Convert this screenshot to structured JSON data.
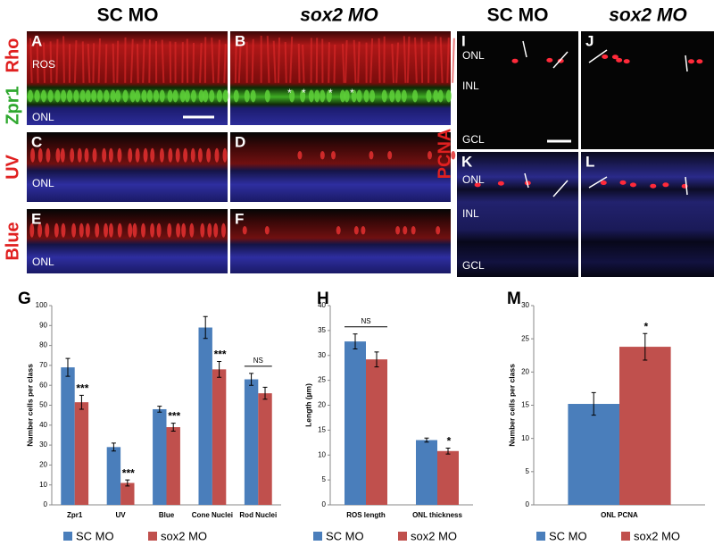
{
  "figure": {
    "column_headers_left": [
      "SC MO",
      "sox2 MO"
    ],
    "column_headers_right": [
      "SC MO",
      "sox2 MO"
    ],
    "row_labels_left": [
      "Rho",
      "Zpr1",
      "UV",
      "Blue"
    ],
    "row_label_right": "PCNA",
    "panels": [
      {
        "letter": "A",
        "labels": [
          "ROS",
          "ONL"
        ]
      },
      {
        "letter": "B",
        "labels": [
          "*",
          "*",
          "*",
          "*"
        ]
      },
      {
        "letter": "C",
        "labels": [
          "ONL"
        ]
      },
      {
        "letter": "D",
        "labels": []
      },
      {
        "letter": "E",
        "labels": [
          "ONL"
        ]
      },
      {
        "letter": "F",
        "labels": []
      },
      {
        "letter": "I",
        "labels": [
          "ONL",
          "INL",
          "GCL"
        ]
      },
      {
        "letter": "J",
        "labels": []
      },
      {
        "letter": "K",
        "labels": [
          "ONL",
          "INL",
          "GCL"
        ]
      },
      {
        "letter": "L",
        "labels": []
      }
    ]
  },
  "chart_data": [
    {
      "type": "bar",
      "panel": "G",
      "ylabel": "Number cells per class",
      "categories": [
        "Zpr1",
        "UV",
        "Blue",
        "Cone Nuclei",
        "Rod Nuclei"
      ],
      "series": [
        {
          "name": "SC MO",
          "color": "#4a7ebb",
          "values": [
            69,
            29,
            48,
            89,
            63
          ],
          "errors": [
            4.5,
            2,
            1.5,
            5.5,
            3
          ]
        },
        {
          "name": "sox2 MO",
          "color": "#c0504d",
          "values": [
            51.5,
            11,
            39,
            68,
            56
          ],
          "errors": [
            3.5,
            1.5,
            2,
            4,
            3
          ]
        }
      ],
      "ylim": [
        0,
        100
      ],
      "yticks": [
        0,
        10,
        20,
        30,
        40,
        50,
        60,
        70,
        80,
        90,
        100
      ],
      "annotations": [
        {
          "text": "***",
          "category": "Zpr1"
        },
        {
          "text": "***",
          "category": "UV"
        },
        {
          "text": "***",
          "category": "Blue"
        },
        {
          "text": "***",
          "category": "Cone Nuclei"
        },
        {
          "text": "NS",
          "category": "Rod Nuclei"
        }
      ],
      "legend": "bottom"
    },
    {
      "type": "bar",
      "panel": "H",
      "ylabel": "Length (µm)",
      "categories": [
        "ROS length",
        "ONL thickness"
      ],
      "series": [
        {
          "name": "SC MO",
          "color": "#4a7ebb",
          "values": [
            32.8,
            13
          ],
          "errors": [
            1.5,
            0.4
          ]
        },
        {
          "name": "sox2 MO",
          "color": "#c0504d",
          "values": [
            29.2,
            10.8
          ],
          "errors": [
            1.5,
            0.6
          ]
        }
      ],
      "ylim": [
        0,
        40
      ],
      "yticks": [
        0,
        5,
        10,
        15,
        20,
        25,
        30,
        35,
        40
      ],
      "annotations": [
        {
          "text": "NS",
          "category": "ROS length"
        },
        {
          "text": "*",
          "category": "ONL thickness"
        }
      ],
      "legend": "bottom"
    },
    {
      "type": "bar",
      "panel": "M",
      "ylabel": "Number cells per class",
      "categories": [
        "ONL PCNA"
      ],
      "series": [
        {
          "name": "SC MO",
          "color": "#4a7ebb",
          "values": [
            15.2
          ],
          "errors": [
            1.7
          ]
        },
        {
          "name": "sox2 MO",
          "color": "#c0504d",
          "values": [
            23.8
          ],
          "errors": [
            2
          ]
        }
      ],
      "ylim": [
        0,
        30
      ],
      "yticks": [
        0,
        5,
        10,
        15,
        20,
        25,
        30
      ],
      "annotations": [
        {
          "text": "*",
          "category": "ONL PCNA"
        }
      ],
      "legend": "bottom"
    }
  ]
}
